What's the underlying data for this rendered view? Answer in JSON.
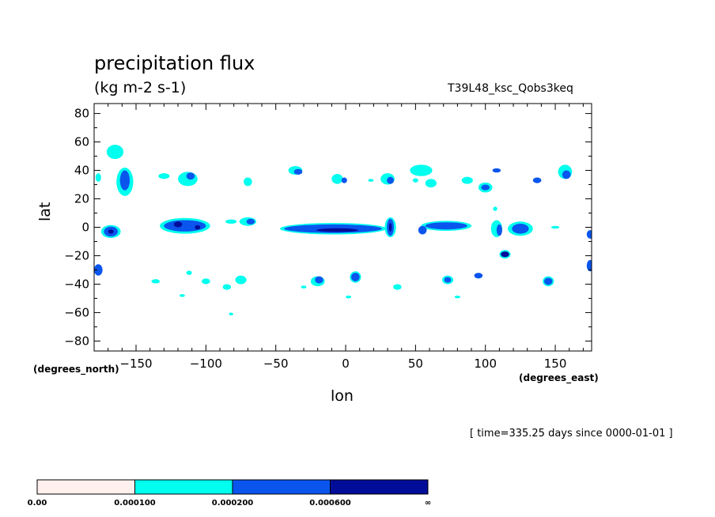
{
  "chart_data": {
    "type": "heatmap",
    "title": "precipitation flux",
    "units": "(kg m-2 s-1)",
    "run_id": "T39L48_ksc_Qobs3keq",
    "xlabel": "lon",
    "ylabel": "lat",
    "x_units_note": "(degrees_east)",
    "y_units_note": "(degrees_north)",
    "time_note": "[ time=335.25 days since 0000-01-01 ]",
    "xlim": [
      -180,
      176
    ],
    "ylim": [
      -87,
      87
    ],
    "x_ticks": [
      {
        "value": -150,
        "label": "−150"
      },
      {
        "value": -100,
        "label": "−100"
      },
      {
        "value": -50,
        "label": "−50"
      },
      {
        "value": 0,
        "label": "0"
      },
      {
        "value": 50,
        "label": "50"
      },
      {
        "value": 100,
        "label": "100"
      },
      {
        "value": 150,
        "label": "150"
      }
    ],
    "y_ticks": [
      {
        "value": 80,
        "label": "80"
      },
      {
        "value": 60,
        "label": "60"
      },
      {
        "value": 40,
        "label": "40"
      },
      {
        "value": 20,
        "label": "20"
      },
      {
        "value": 0,
        "label": "0"
      },
      {
        "value": -20,
        "label": "−20"
      },
      {
        "value": -40,
        "label": "−40"
      },
      {
        "value": -60,
        "label": "−60"
      },
      {
        "value": -80,
        "label": "−80"
      }
    ],
    "levels": [
      {
        "label": "0.00",
        "color": "#fff0ee"
      },
      {
        "label": "0.000100",
        "color": "#00ffee"
      },
      {
        "label": "0.000200",
        "color": "#0a55ee"
      },
      {
        "label": "0.000600",
        "color": "#000d99"
      },
      {
        "label": "∞",
        "color": null
      }
    ],
    "regions": [
      {
        "lon": -165,
        "lat": 53,
        "dlon": 6,
        "dlat": 5,
        "level": 1
      },
      {
        "lon": -158,
        "lat": 32,
        "dlon": 6,
        "dlat": 10,
        "level": 1
      },
      {
        "lon": -158,
        "lat": 33,
        "dlon": 3.5,
        "dlat": 7,
        "level": 2
      },
      {
        "lon": -168,
        "lat": -3,
        "dlon": 7,
        "dlat": 4.5,
        "level": 1
      },
      {
        "lon": -168,
        "lat": -3,
        "dlon": 5,
        "dlat": 3.5,
        "level": 2
      },
      {
        "lon": -168,
        "lat": -3,
        "dlon": 2,
        "dlat": 1.5,
        "level": 3
      },
      {
        "lon": -115,
        "lat": 1,
        "dlon": 18,
        "dlat": 5.5,
        "level": 1
      },
      {
        "lon": -115,
        "lat": 1,
        "dlon": 15,
        "dlat": 4,
        "level": 2
      },
      {
        "lon": -120,
        "lat": 2,
        "dlon": 3,
        "dlat": 2,
        "level": 3
      },
      {
        "lon": -106,
        "lat": 0,
        "dlon": 2,
        "dlat": 1.5,
        "level": 3
      },
      {
        "lon": -113,
        "lat": 34,
        "dlon": 7,
        "dlat": 5,
        "level": 1
      },
      {
        "lon": -111,
        "lat": 36,
        "dlon": 3,
        "dlat": 2.5,
        "level": 2
      },
      {
        "lon": -70,
        "lat": 4,
        "dlon": 6,
        "dlat": 3,
        "level": 1
      },
      {
        "lon": -68,
        "lat": 4,
        "dlon": 3,
        "dlat": 2,
        "level": 2
      },
      {
        "lon": -70,
        "lat": 32,
        "dlon": 3,
        "dlat": 3,
        "level": 1
      },
      {
        "lon": -9,
        "lat": -1,
        "dlon": 38,
        "dlat": 4,
        "level": 1
      },
      {
        "lon": -9,
        "lat": -1,
        "dlon": 35,
        "dlat": 3,
        "level": 2
      },
      {
        "lon": -6,
        "lat": -2,
        "dlon": 15,
        "dlat": 1.3,
        "level": 3
      },
      {
        "lon": 32,
        "lat": 0,
        "dlon": 4,
        "dlat": 7,
        "level": 1
      },
      {
        "lon": 32,
        "lat": 0,
        "dlon": 2.5,
        "dlat": 6,
        "level": 2
      },
      {
        "lon": 32,
        "lat": 0,
        "dlon": 1,
        "dlat": 3,
        "level": 3
      },
      {
        "lon": 72,
        "lat": 1,
        "dlon": 18,
        "dlat": 3.5,
        "level": 1
      },
      {
        "lon": 72,
        "lat": 1,
        "dlon": 15,
        "dlat": 2.5,
        "level": 2
      },
      {
        "lon": 125,
        "lat": -1,
        "dlon": 9,
        "dlat": 5,
        "level": 1
      },
      {
        "lon": 125,
        "lat": -1,
        "dlon": 6,
        "dlat": 3.5,
        "level": 2
      },
      {
        "lon": 108,
        "lat": -1,
        "dlon": 4,
        "dlat": 6,
        "level": 1
      },
      {
        "lon": 110,
        "lat": -2,
        "dlon": 2,
        "dlat": 4,
        "level": 2
      },
      {
        "lon": 114,
        "lat": -19,
        "dlon": 4,
        "dlat": 3,
        "level": 1
      },
      {
        "lon": 114,
        "lat": -19,
        "dlon": 3,
        "dlat": 2,
        "level": 3
      },
      {
        "lon": 54,
        "lat": 40,
        "dlon": 8,
        "dlat": 4,
        "level": 1
      },
      {
        "lon": 61,
        "lat": 31,
        "dlon": 4,
        "dlat": 3,
        "level": 1
      },
      {
        "lon": 100,
        "lat": 28,
        "dlon": 5,
        "dlat": 3.5,
        "level": 1
      },
      {
        "lon": 100,
        "lat": 28,
        "dlon": 3,
        "dlat": 2,
        "level": 2
      },
      {
        "lon": 157,
        "lat": 39,
        "dlon": 5,
        "dlat": 5,
        "level": 1
      },
      {
        "lon": 158,
        "lat": 37,
        "dlon": 3,
        "dlat": 3,
        "level": 2
      },
      {
        "lon": -36,
        "lat": 40,
        "dlon": 5,
        "dlat": 3,
        "level": 1
      },
      {
        "lon": -34,
        "lat": 39,
        "dlon": 3,
        "dlat": 2,
        "level": 2
      },
      {
        "lon": -6,
        "lat": 34,
        "dlon": 4,
        "dlat": 3.5,
        "level": 1
      },
      {
        "lon": -1,
        "lat": 33,
        "dlon": 2,
        "dlat": 2,
        "level": 2
      },
      {
        "lon": 30,
        "lat": 34,
        "dlon": 5,
        "dlat": 4,
        "level": 1
      },
      {
        "lon": 32,
        "lat": 33,
        "dlon": 2.5,
        "dlat": 2.5,
        "level": 2
      },
      {
        "lon": -20,
        "lat": -38,
        "dlon": 5,
        "dlat": 3.5,
        "level": 1
      },
      {
        "lon": -19,
        "lat": -37,
        "dlon": 3,
        "dlat": 2.5,
        "level": 2
      },
      {
        "lon": 7,
        "lat": -35,
        "dlon": 4,
        "dlat": 4,
        "level": 1
      },
      {
        "lon": 7,
        "lat": -35,
        "dlon": 3,
        "dlat": 3,
        "level": 2
      },
      {
        "lon": 73,
        "lat": -37,
        "dlon": 4,
        "dlat": 3,
        "level": 1
      },
      {
        "lon": 73,
        "lat": -37,
        "dlon": 2.5,
        "dlat": 2,
        "level": 2
      },
      {
        "lon": 145,
        "lat": -38,
        "dlon": 4,
        "dlat": 3.5,
        "level": 1
      },
      {
        "lon": 145,
        "lat": -38,
        "dlon": 3,
        "dlat": 2.5,
        "level": 2
      },
      {
        "lon": -75,
        "lat": -37,
        "dlon": 4,
        "dlat": 3,
        "level": 1
      },
      {
        "lon": -100,
        "lat": -38,
        "dlon": 3,
        "dlat": 2,
        "level": 1
      },
      {
        "lon": -177,
        "lat": -30,
        "dlon": 3,
        "dlat": 4,
        "level": 2
      },
      {
        "lon": 175,
        "lat": -27,
        "dlon": 2.5,
        "dlat": 4,
        "level": 2
      },
      {
        "lon": 175,
        "lat": -5,
        "dlon": 2.5,
        "dlat": 3,
        "level": 2
      },
      {
        "lon": 95,
        "lat": -34,
        "dlon": 3,
        "dlat": 2,
        "level": 2
      },
      {
        "lon": -112,
        "lat": -32,
        "dlon": 2,
        "dlat": 1.5,
        "level": 1
      },
      {
        "lon": -136,
        "lat": -38,
        "dlon": 3,
        "dlat": 1.5,
        "level": 1
      },
      {
        "lon": -85,
        "lat": -42,
        "dlon": 3,
        "dlat": 2,
        "level": 1
      },
      {
        "lon": -130,
        "lat": 36,
        "dlon": 4,
        "dlat": 2,
        "level": 1
      },
      {
        "lon": 87,
        "lat": 33,
        "dlon": 4,
        "dlat": 2.5,
        "level": 1
      },
      {
        "lon": 108,
        "lat": 40,
        "dlon": 3,
        "dlat": 1.5,
        "level": 2
      },
      {
        "lon": 137,
        "lat": 33,
        "dlon": 3,
        "dlat": 2,
        "level": 2
      },
      {
        "lon": 150,
        "lat": 0,
        "dlon": 3,
        "dlat": 1,
        "level": 1
      },
      {
        "lon": 37,
        "lat": -42,
        "dlon": 3,
        "dlat": 2,
        "level": 1
      },
      {
        "lon": -82,
        "lat": 4,
        "dlon": 4,
        "dlat": 1.5,
        "level": 1
      },
      {
        "lon": 55,
        "lat": -2,
        "dlon": 3,
        "dlat": 3,
        "level": 2
      },
      {
        "lon": 50,
        "lat": 33,
        "dlon": 2,
        "dlat": 1.5,
        "level": 1
      },
      {
        "lon": 18,
        "lat": 33,
        "dlon": 2,
        "dlat": 1,
        "level": 1
      },
      {
        "lon": -30,
        "lat": -42,
        "dlon": 2,
        "dlat": 1,
        "level": 1
      },
      {
        "lon": 2,
        "lat": -49,
        "dlon": 2,
        "dlat": 1,
        "level": 1
      },
      {
        "lon": -117,
        "lat": -48,
        "dlon": 2,
        "dlat": 1,
        "level": 1
      },
      {
        "lon": -82,
        "lat": -61,
        "dlon": 1.5,
        "dlat": 1,
        "level": 1
      },
      {
        "lon": 80,
        "lat": -49,
        "dlon": 2,
        "dlat": 1,
        "level": 1
      },
      {
        "lon": 107,
        "lat": 13,
        "dlon": 1.5,
        "dlat": 1.5,
        "level": 1
      },
      {
        "lon": -177,
        "lat": 35,
        "dlon": 2,
        "dlat": 3,
        "level": 1
      }
    ]
  }
}
